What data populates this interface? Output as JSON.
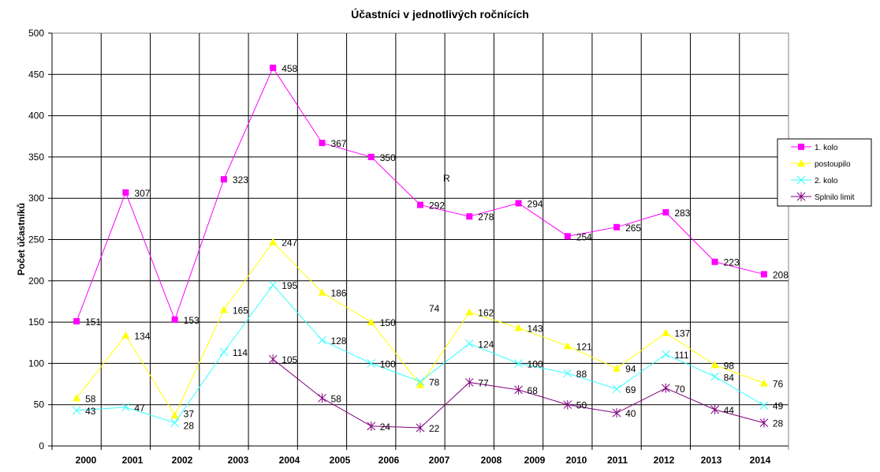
{
  "chart_data": {
    "type": "line",
    "title": "Účastníci v jednotlivých ročnících",
    "xlabel": "",
    "ylabel": "Počet účastníků",
    "ylim": [
      0,
      500
    ],
    "yticks": [
      0,
      50,
      100,
      150,
      200,
      250,
      300,
      350,
      400,
      450,
      500
    ],
    "grid": true,
    "legend_position": "right",
    "categories": [
      "2000",
      "2001",
      "2002",
      "2003",
      "2004",
      "2005",
      "2006",
      "2007",
      "2008",
      "2009",
      "2010",
      "2011",
      "2012",
      "2013",
      "2014"
    ],
    "series": [
      {
        "name": "1. kolo",
        "color": "#FF00FF",
        "marker": "square",
        "values": [
          151,
          307,
          153,
          323,
          458,
          367,
          350,
          292,
          278,
          294,
          254,
          265,
          283,
          223,
          208
        ]
      },
      {
        "name": "postoupilo",
        "color": "#FFFF00",
        "marker": "triangle",
        "values": [
          58,
          134,
          37,
          165,
          247,
          186,
          150,
          74,
          162,
          143,
          121,
          94,
          137,
          98,
          76
        ]
      },
      {
        "name": "2. kolo",
        "color": "#33FFFF",
        "marker": "x",
        "values": [
          43,
          47,
          28,
          114,
          195,
          128,
          100,
          78,
          124,
          100,
          88,
          69,
          111,
          84,
          49
        ]
      },
      {
        "name": "Splnilo limit",
        "color": "#800080",
        "marker": "star",
        "values": [
          null,
          null,
          null,
          null,
          105,
          58,
          24,
          22,
          77,
          68,
          50,
          40,
          70,
          44,
          28
        ]
      }
    ],
    "annotations": [
      "R"
    ]
  }
}
